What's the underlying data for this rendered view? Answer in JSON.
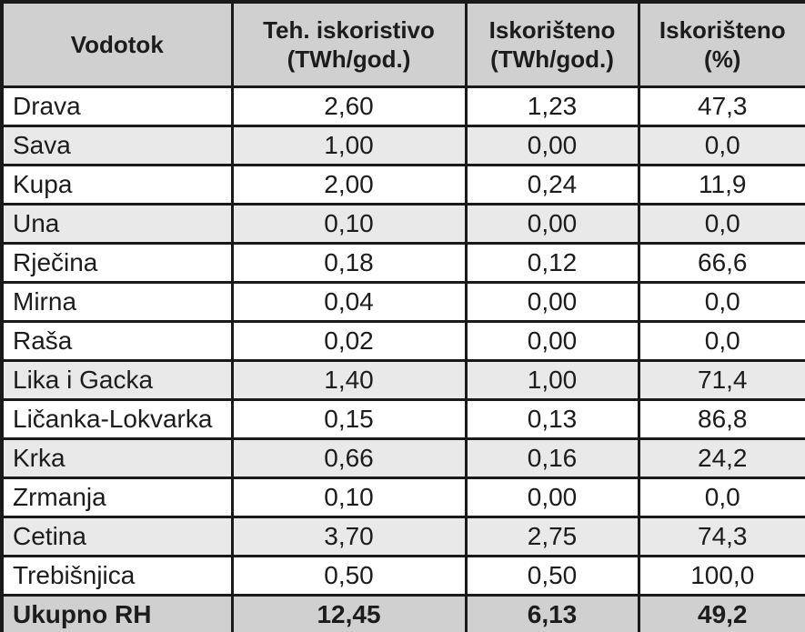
{
  "table": {
    "columns": [
      "Vodotok",
      "Teh. iskoristivo\n(TWh/god.)",
      "Iskorišteno\n(TWh/god.)",
      "Iskorišteno\n(%)"
    ],
    "rows": [
      {
        "cells": [
          "Drava",
          "2,60",
          "1,23",
          "47,3"
        ],
        "shade": "white"
      },
      {
        "cells": [
          "Sava",
          "1,00",
          "0,00",
          "0,0"
        ],
        "shade": "stripe"
      },
      {
        "cells": [
          "Kupa",
          "2,00",
          "0,24",
          "11,9"
        ],
        "shade": "white"
      },
      {
        "cells": [
          "Una",
          "0,10",
          "0,00",
          "0,0"
        ],
        "shade": "stripe"
      },
      {
        "cells": [
          "Rječina",
          "0,18",
          "0,12",
          "66,6"
        ],
        "shade": "white"
      },
      {
        "cells": [
          "Mirna",
          "0,04",
          "0,00",
          "0,0"
        ],
        "shade": "white"
      },
      {
        "cells": [
          "Raša",
          "0,02",
          "0,00",
          "0,0"
        ],
        "shade": "white"
      },
      {
        "cells": [
          "Lika i Gacka",
          "1,40",
          "1,00",
          "71,4"
        ],
        "shade": "stripe"
      },
      {
        "cells": [
          "Ličanka-Lokvarka",
          "0,15",
          "0,13",
          "86,8"
        ],
        "shade": "white"
      },
      {
        "cells": [
          "Krka",
          "0,66",
          "0,16",
          "24,2"
        ],
        "shade": "stripe"
      },
      {
        "cells": [
          "Zrmanja",
          "0,10",
          "0,00",
          "0,0"
        ],
        "shade": "white"
      },
      {
        "cells": [
          "Cetina",
          "3,70",
          "2,75",
          "74,3"
        ],
        "shade": "stripe"
      },
      {
        "cells": [
          "Trebišnjica",
          "0,50",
          "0,50",
          "100,0"
        ],
        "shade": "white"
      },
      {
        "cells": [
          "Ukupno RH",
          "12,45",
          "6,13",
          "49,2"
        ],
        "shade": "total"
      }
    ]
  },
  "colors": {
    "border": "#1a1a1a",
    "text": "#1c1c1c",
    "header_bg": "#d0d0d0",
    "stripe_bg": "#e9e9e9",
    "total_bg": "#d0d0d0",
    "white_bg": "#ffffff"
  }
}
